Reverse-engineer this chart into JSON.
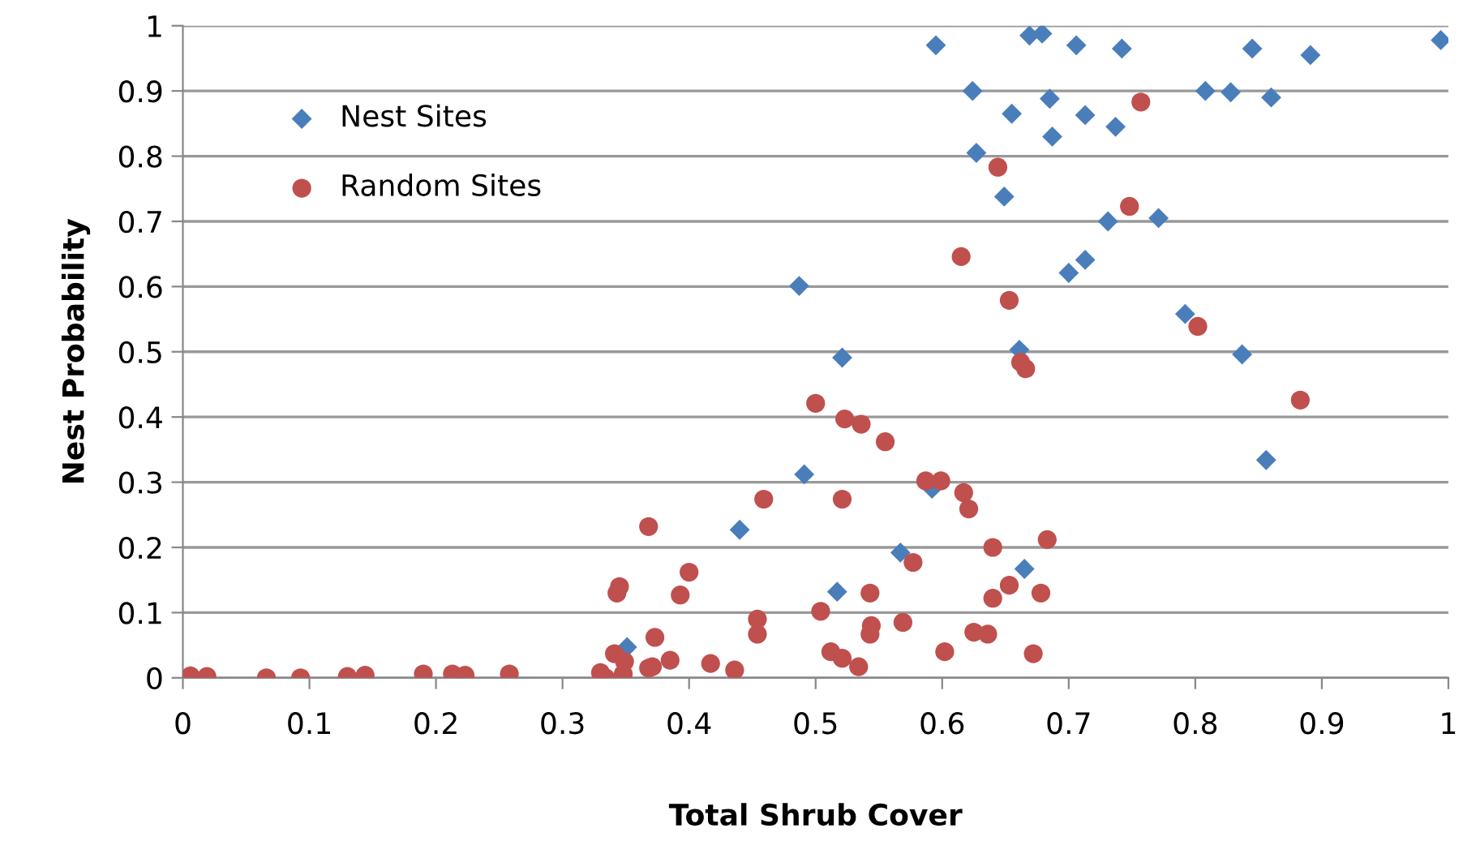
{
  "chart_data": {
    "type": "scatter",
    "xlabel": "Total Shrub Cover",
    "ylabel": "Nest Probability",
    "xlim": [
      0,
      1
    ],
    "xticks": [
      0,
      0.1,
      0.2,
      0.3,
      0.4,
      0.5,
      0.6,
      0.7,
      0.8,
      0.9,
      1
    ],
    "ylim": [
      0,
      1
    ],
    "yticks": [
      0,
      0.1,
      0.2,
      0.3,
      0.4,
      0.5,
      0.6,
      0.7,
      0.8,
      0.9,
      1
    ],
    "grid": "y",
    "legend": "top left",
    "series": [
      {
        "name": "Nest Sites",
        "color": "#4a7ebb",
        "marker": "diamond",
        "x": [
          0.595,
          0.669,
          0.679,
          0.706,
          0.742,
          0.845,
          0.891,
          0.994,
          0.624,
          0.808,
          0.828,
          0.86,
          0.685,
          0.655,
          0.713,
          0.737,
          0.687,
          0.627,
          0.649,
          0.731,
          0.771,
          0.713,
          0.7,
          0.487,
          0.792,
          0.521,
          0.661,
          0.837,
          0.856,
          0.491,
          0.44,
          0.567,
          0.592,
          0.517,
          0.665,
          0.351
        ],
        "values": [
          0.97,
          0.985,
          0.988,
          0.97,
          0.965,
          0.965,
          0.955,
          0.978,
          0.9,
          0.9,
          0.898,
          0.89,
          0.888,
          0.865,
          0.863,
          0.845,
          0.83,
          0.805,
          0.738,
          0.7,
          0.705,
          0.641,
          0.621,
          0.601,
          0.558,
          0.491,
          0.503,
          0.496,
          0.334,
          0.312,
          0.227,
          0.192,
          0.29,
          0.132,
          0.167,
          0.047
        ]
      },
      {
        "name": "Random Sites",
        "color": "#c0504d",
        "marker": "circle",
        "x": [
          0.006,
          0.019,
          0.066,
          0.093,
          0.13,
          0.144,
          0.19,
          0.213,
          0.223,
          0.258,
          0.33,
          0.334,
          0.341,
          0.349,
          0.348,
          0.345,
          0.343,
          0.368,
          0.373,
          0.368,
          0.371,
          0.385,
          0.4,
          0.393,
          0.417,
          0.436,
          0.454,
          0.454,
          0.459,
          0.5,
          0.523,
          0.536,
          0.555,
          0.587,
          0.599,
          0.617,
          0.621,
          0.521,
          0.577,
          0.64,
          0.683,
          0.653,
          0.64,
          0.678,
          0.543,
          0.504,
          0.544,
          0.543,
          0.569,
          0.625,
          0.636,
          0.512,
          0.521,
          0.534,
          0.602,
          0.672,
          0.757,
          0.644,
          0.748,
          0.615,
          0.653,
          0.802,
          0.662,
          0.666,
          0.883
        ],
        "values": [
          0.003,
          0.002,
          0.0,
          0.0,
          0.002,
          0.004,
          0.006,
          0.006,
          0.004,
          0.006,
          0.008,
          0.0,
          0.037,
          0.025,
          0.006,
          0.14,
          0.13,
          0.232,
          0.062,
          0.015,
          0.017,
          0.027,
          0.162,
          0.127,
          0.022,
          0.012,
          0.067,
          0.09,
          0.274,
          0.421,
          0.397,
          0.389,
          0.362,
          0.302,
          0.302,
          0.284,
          0.259,
          0.274,
          0.177,
          0.2,
          0.212,
          0.142,
          0.122,
          0.13,
          0.13,
          0.102,
          0.08,
          0.067,
          0.085,
          0.07,
          0.067,
          0.04,
          0.03,
          0.017,
          0.04,
          0.037,
          0.883,
          0.783,
          0.723,
          0.646,
          0.579,
          0.539,
          0.484,
          0.474,
          0.426
        ]
      }
    ]
  }
}
